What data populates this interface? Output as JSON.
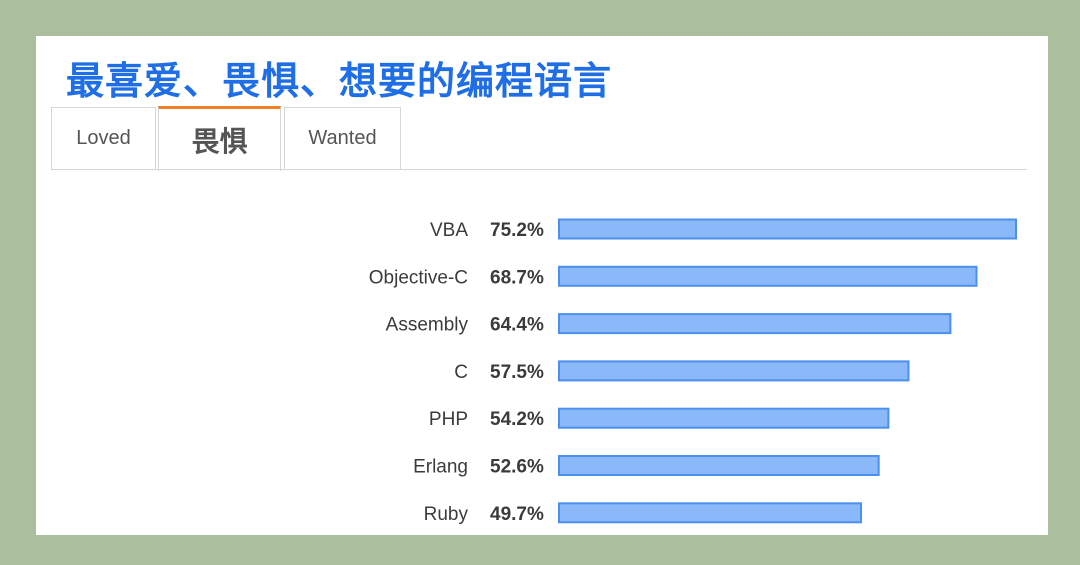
{
  "page": {
    "title": "最喜爱、畏惧、想要的编程语言"
  },
  "tabs": [
    {
      "label": "Loved",
      "active": false
    },
    {
      "label": "畏惧",
      "active": true
    },
    {
      "label": "Wanted",
      "active": false
    }
  ],
  "colors": {
    "title": "#1f6ee6",
    "bar_fill": "#8ab8f8",
    "bar_stroke": "#4a90ec",
    "tab_active_accent": "#f48024",
    "background": "#abbf9f"
  },
  "chart_data": {
    "type": "bar",
    "orientation": "horizontal",
    "categories": [
      "VBA",
      "Objective-C",
      "Assembly",
      "C",
      "PHP",
      "Erlang",
      "Ruby"
    ],
    "values": [
      75.2,
      68.7,
      64.4,
      57.5,
      54.2,
      52.6,
      49.7
    ],
    "value_labels": [
      "75.2%",
      "68.7%",
      "64.4%",
      "57.5%",
      "54.2%",
      "52.6%",
      "49.7%"
    ],
    "unit": "%",
    "xlim": [
      0,
      75.2
    ],
    "grid": false,
    "legend": "none"
  }
}
